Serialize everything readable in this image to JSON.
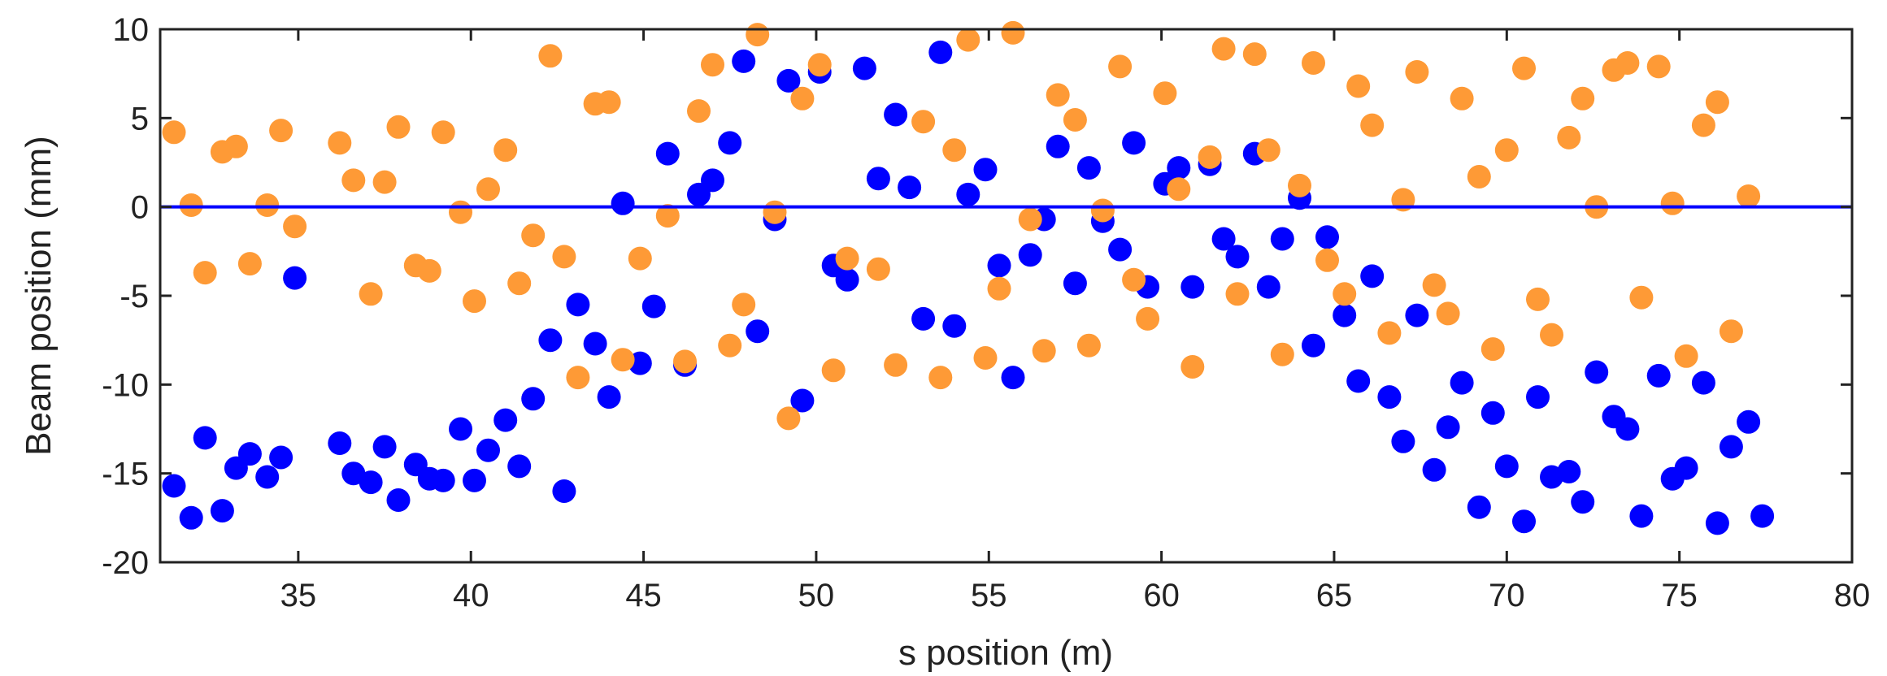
{
  "chart_data": {
    "type": "scatter",
    "title": "",
    "xlabel": "s position (m)",
    "ylabel": "Beam position (mm)",
    "xlim": [
      31,
      80
    ],
    "ylim": [
      -20,
      10
    ],
    "x_ticks": [
      "35",
      "40",
      "45",
      "50",
      "55",
      "60",
      "65",
      "70",
      "75",
      "80"
    ],
    "y_ticks": [
      "10",
      "5",
      "0",
      "-5",
      "-10",
      "-15",
      "-20"
    ],
    "grid": false,
    "legend": false,
    "reference_line": {
      "y": 0,
      "color": "#0000ff"
    },
    "series": [
      {
        "color": "#0000ff",
        "points": [
          [
            31.4,
            -15.7
          ],
          [
            31.9,
            -17.5
          ],
          [
            32.3,
            -13.0
          ],
          [
            32.8,
            -17.1
          ],
          [
            33.2,
            -14.7
          ],
          [
            33.6,
            -13.9
          ],
          [
            34.1,
            -15.2
          ],
          [
            34.5,
            -14.1
          ],
          [
            34.9,
            -4.0
          ],
          [
            36.2,
            -13.3
          ],
          [
            36.6,
            -15.0
          ],
          [
            37.1,
            -15.5
          ],
          [
            37.5,
            -13.5
          ],
          [
            37.9,
            -16.5
          ],
          [
            38.4,
            -14.5
          ],
          [
            38.8,
            -15.3
          ],
          [
            39.2,
            -15.4
          ],
          [
            39.7,
            -12.5
          ],
          [
            40.1,
            -15.4
          ],
          [
            40.5,
            -13.7
          ],
          [
            41.0,
            -12.0
          ],
          [
            41.4,
            -14.6
          ],
          [
            41.8,
            -10.8
          ],
          [
            42.3,
            -7.5
          ],
          [
            42.7,
            -16.0
          ],
          [
            43.1,
            -5.5
          ],
          [
            43.6,
            -7.7
          ],
          [
            44.0,
            -10.7
          ],
          [
            44.4,
            0.2
          ],
          [
            44.9,
            -8.8
          ],
          [
            45.3,
            -5.6
          ],
          [
            45.7,
            3.0
          ],
          [
            46.2,
            -8.9
          ],
          [
            46.6,
            0.7
          ],
          [
            47.0,
            1.5
          ],
          [
            47.5,
            3.6
          ],
          [
            47.9,
            8.2
          ],
          [
            48.3,
            -7.0
          ],
          [
            48.8,
            -0.7
          ],
          [
            49.2,
            7.1
          ],
          [
            49.6,
            -10.9
          ],
          [
            50.1,
            7.6
          ],
          [
            50.5,
            -3.3
          ],
          [
            50.9,
            -4.1
          ],
          [
            51.4,
            7.8
          ],
          [
            51.8,
            1.6
          ],
          [
            52.3,
            5.2
          ],
          [
            52.7,
            1.1
          ],
          [
            53.1,
            -6.3
          ],
          [
            53.6,
            8.7
          ],
          [
            54.0,
            -6.7
          ],
          [
            54.4,
            0.7
          ],
          [
            54.9,
            2.1
          ],
          [
            55.3,
            -3.3
          ],
          [
            55.7,
            -9.6
          ],
          [
            56.2,
            -2.7
          ],
          [
            56.6,
            -0.7
          ],
          [
            57.0,
            3.4
          ],
          [
            57.5,
            -4.3
          ],
          [
            57.9,
            2.2
          ],
          [
            58.3,
            -0.8
          ],
          [
            58.8,
            -2.4
          ],
          [
            59.2,
            3.6
          ],
          [
            59.6,
            -4.5
          ],
          [
            60.1,
            1.3
          ],
          [
            60.5,
            2.2
          ],
          [
            60.9,
            -4.5
          ],
          [
            61.4,
            2.4
          ],
          [
            61.8,
            -1.8
          ],
          [
            62.2,
            -2.8
          ],
          [
            62.7,
            3.0
          ],
          [
            63.1,
            -4.5
          ],
          [
            63.5,
            -1.8
          ],
          [
            64.0,
            0.5
          ],
          [
            64.4,
            -7.8
          ],
          [
            64.8,
            -1.7
          ],
          [
            65.3,
            -6.1
          ],
          [
            65.7,
            -9.8
          ],
          [
            66.1,
            -3.9
          ],
          [
            66.6,
            -10.7
          ],
          [
            67.0,
            -13.2
          ],
          [
            67.4,
            -6.1
          ],
          [
            67.9,
            -14.8
          ],
          [
            68.3,
            -12.4
          ],
          [
            68.7,
            -9.9
          ],
          [
            69.2,
            -16.9
          ],
          [
            69.6,
            -11.6
          ],
          [
            70.0,
            -14.6
          ],
          [
            70.5,
            -17.7
          ],
          [
            70.9,
            -10.7
          ],
          [
            71.3,
            -15.2
          ],
          [
            71.8,
            -14.9
          ],
          [
            72.2,
            -16.6
          ],
          [
            72.6,
            -9.3
          ],
          [
            73.1,
            -11.8
          ],
          [
            73.5,
            -12.5
          ],
          [
            73.9,
            -17.4
          ],
          [
            74.4,
            -9.5
          ],
          [
            74.8,
            -15.3
          ],
          [
            75.2,
            -14.7
          ],
          [
            75.7,
            -9.9
          ],
          [
            76.1,
            -17.8
          ],
          [
            76.5,
            -13.5
          ],
          [
            77.0,
            -12.1
          ],
          [
            77.4,
            -17.4
          ]
        ]
      },
      {
        "color": "#fe9a36",
        "points": [
          [
            31.4,
            4.2
          ],
          [
            31.9,
            0.1
          ],
          [
            32.3,
            -3.7
          ],
          [
            32.8,
            3.1
          ],
          [
            33.2,
            3.4
          ],
          [
            33.6,
            -3.2
          ],
          [
            34.1,
            0.1
          ],
          [
            34.5,
            4.3
          ],
          [
            34.9,
            -1.1
          ],
          [
            36.2,
            3.6
          ],
          [
            36.6,
            1.5
          ],
          [
            37.1,
            -4.9
          ],
          [
            37.5,
            1.4
          ],
          [
            37.9,
            4.5
          ],
          [
            38.4,
            -3.3
          ],
          [
            38.8,
            -3.6
          ],
          [
            39.2,
            4.2
          ],
          [
            39.7,
            -0.3
          ],
          [
            40.1,
            -5.3
          ],
          [
            40.5,
            1.0
          ],
          [
            41.0,
            3.2
          ],
          [
            41.4,
            -4.3
          ],
          [
            41.8,
            -1.6
          ],
          [
            42.3,
            8.5
          ],
          [
            42.7,
            -2.8
          ],
          [
            43.1,
            -9.6
          ],
          [
            43.6,
            5.8
          ],
          [
            44.0,
            5.9
          ],
          [
            44.4,
            -8.6
          ],
          [
            44.9,
            -2.9
          ],
          [
            45.7,
            -0.5
          ],
          [
            46.2,
            -8.7
          ],
          [
            46.6,
            5.4
          ],
          [
            47.0,
            8.0
          ],
          [
            47.5,
            -7.8
          ],
          [
            47.9,
            -5.5
          ],
          [
            48.3,
            9.7
          ],
          [
            48.8,
            -0.3
          ],
          [
            49.2,
            -11.9
          ],
          [
            49.6,
            6.1
          ],
          [
            50.1,
            8.0
          ],
          [
            50.9,
            -2.9
          ],
          [
            50.5,
            -9.2
          ],
          [
            51.8,
            -3.5
          ],
          [
            52.3,
            -8.9
          ],
          [
            53.1,
            4.8
          ],
          [
            53.6,
            -9.6
          ],
          [
            54.0,
            3.2
          ],
          [
            54.4,
            9.4
          ],
          [
            54.9,
            -8.5
          ],
          [
            55.3,
            -4.6
          ],
          [
            55.7,
            9.8
          ],
          [
            56.2,
            -0.7
          ],
          [
            56.6,
            -8.1
          ],
          [
            57.0,
            6.3
          ],
          [
            57.5,
            4.9
          ],
          [
            57.9,
            -7.8
          ],
          [
            58.3,
            -0.2
          ],
          [
            58.8,
            7.9
          ],
          [
            59.2,
            -4.1
          ],
          [
            59.6,
            -6.3
          ],
          [
            60.1,
            6.4
          ],
          [
            60.5,
            1.0
          ],
          [
            60.9,
            -9.0
          ],
          [
            61.4,
            2.8
          ],
          [
            61.8,
            8.9
          ],
          [
            62.2,
            -4.9
          ],
          [
            62.7,
            8.6
          ],
          [
            63.1,
            3.2
          ],
          [
            63.5,
            -8.3
          ],
          [
            64.0,
            1.2
          ],
          [
            64.4,
            8.1
          ],
          [
            64.8,
            -3.0
          ],
          [
            65.3,
            -4.9
          ],
          [
            65.7,
            6.8
          ],
          [
            66.1,
            4.6
          ],
          [
            66.6,
            -7.1
          ],
          [
            67.0,
            0.4
          ],
          [
            67.4,
            7.6
          ],
          [
            67.9,
            -4.4
          ],
          [
            68.3,
            -6.0
          ],
          [
            68.7,
            6.1
          ],
          [
            69.2,
            1.7
          ],
          [
            69.6,
            -8.0
          ],
          [
            70.0,
            3.2
          ],
          [
            70.5,
            7.8
          ],
          [
            70.9,
            -5.2
          ],
          [
            71.3,
            -7.2
          ],
          [
            71.8,
            3.9
          ],
          [
            72.2,
            6.1
          ],
          [
            72.6,
            0.0
          ],
          [
            73.1,
            7.7
          ],
          [
            73.5,
            8.1
          ],
          [
            73.9,
            -5.1
          ],
          [
            74.4,
            7.9
          ],
          [
            74.8,
            0.2
          ],
          [
            75.2,
            -8.4
          ],
          [
            75.7,
            4.6
          ],
          [
            76.1,
            5.9
          ],
          [
            76.5,
            -7.0
          ],
          [
            77.0,
            0.6
          ]
        ]
      }
    ]
  }
}
